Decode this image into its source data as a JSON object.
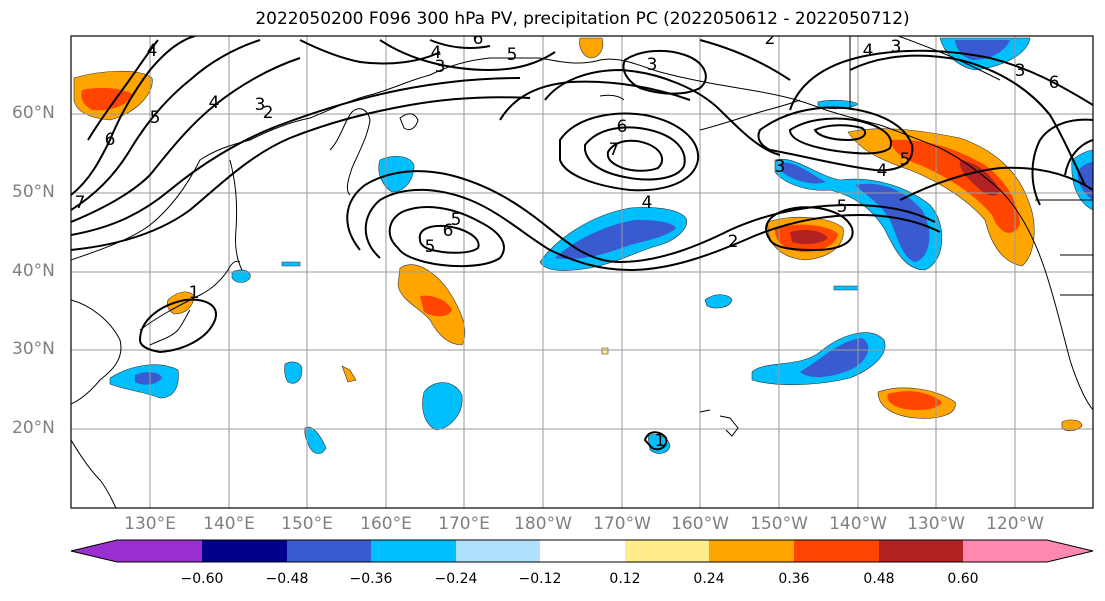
{
  "title": "2022050200 F096 300 hPa PV, precipitation PC (2022050612 - 2022050712)",
  "lat_labels": [
    "60°N",
    "50°N",
    "40°N",
    "30°N",
    "20°N"
  ],
  "lon_labels": [
    "130°E",
    "140°E",
    "150°E",
    "160°E",
    "170°E",
    "180°W",
    "170°W",
    "160°W",
    "150°W",
    "140°W",
    "130°W",
    "120°W"
  ],
  "contour_labels": [
    "6",
    "5",
    "4",
    "3",
    "2",
    "7",
    "6",
    "5",
    "4",
    "3",
    "2",
    "6",
    "7",
    "5",
    "4",
    "3",
    "5",
    "4",
    "2",
    "6",
    "5",
    "3",
    "3",
    "4",
    "6",
    "5",
    "4",
    "1",
    "1",
    "3"
  ],
  "colorbar": {
    "ticks": [
      "−0.60",
      "−0.48",
      "−0.36",
      "−0.24",
      "−0.12",
      "0.12",
      "0.24",
      "0.36",
      "0.48",
      "0.60"
    ],
    "colors": [
      "#9b30d0",
      "#00008b",
      "#3a5bd0",
      "#00bfff",
      "#b0e2ff",
      "#ffffff",
      "#ffec8b",
      "#ffa500",
      "#ff4500",
      "#b22222",
      "#ff88b0"
    ]
  },
  "colors": {
    "contour": "#000000",
    "coast": "#000000",
    "grid": "#9a9a9a",
    "axis_label": "#7f7f7f"
  }
}
